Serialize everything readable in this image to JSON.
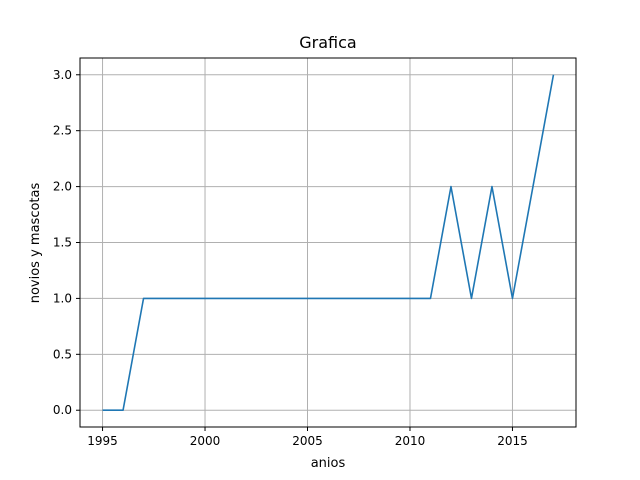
{
  "chart_data": {
    "type": "line",
    "title": "Grafica",
    "xlabel": "anios",
    "ylabel": "novios y mascotas",
    "xlim": [
      1993.9,
      2018.1
    ],
    "ylim": [
      -0.15,
      3.15
    ],
    "xticks": [
      1995,
      2000,
      2005,
      2010,
      2015
    ],
    "xtick_labels": [
      "1995",
      "2000",
      "2005",
      "2010",
      "2015"
    ],
    "yticks": [
      0.0,
      0.5,
      1.0,
      1.5,
      2.0,
      2.5,
      3.0
    ],
    "ytick_labels": [
      "0.0",
      "0.5",
      "1.0",
      "1.5",
      "2.0",
      "2.5",
      "3.0"
    ],
    "grid": true,
    "series": [
      {
        "color": "#1f77b4",
        "x": [
          1995,
          1996,
          1997,
          1998,
          1999,
          2000,
          2001,
          2002,
          2003,
          2004,
          2005,
          2006,
          2007,
          2008,
          2009,
          2010,
          2011,
          2012,
          2013,
          2014,
          2015,
          2016,
          2017
        ],
        "y": [
          0,
          0,
          1,
          1,
          1,
          1,
          1,
          1,
          1,
          1,
          1,
          1,
          1,
          1,
          1,
          1,
          1,
          2,
          1,
          2,
          1,
          2,
          3
        ]
      }
    ]
  }
}
